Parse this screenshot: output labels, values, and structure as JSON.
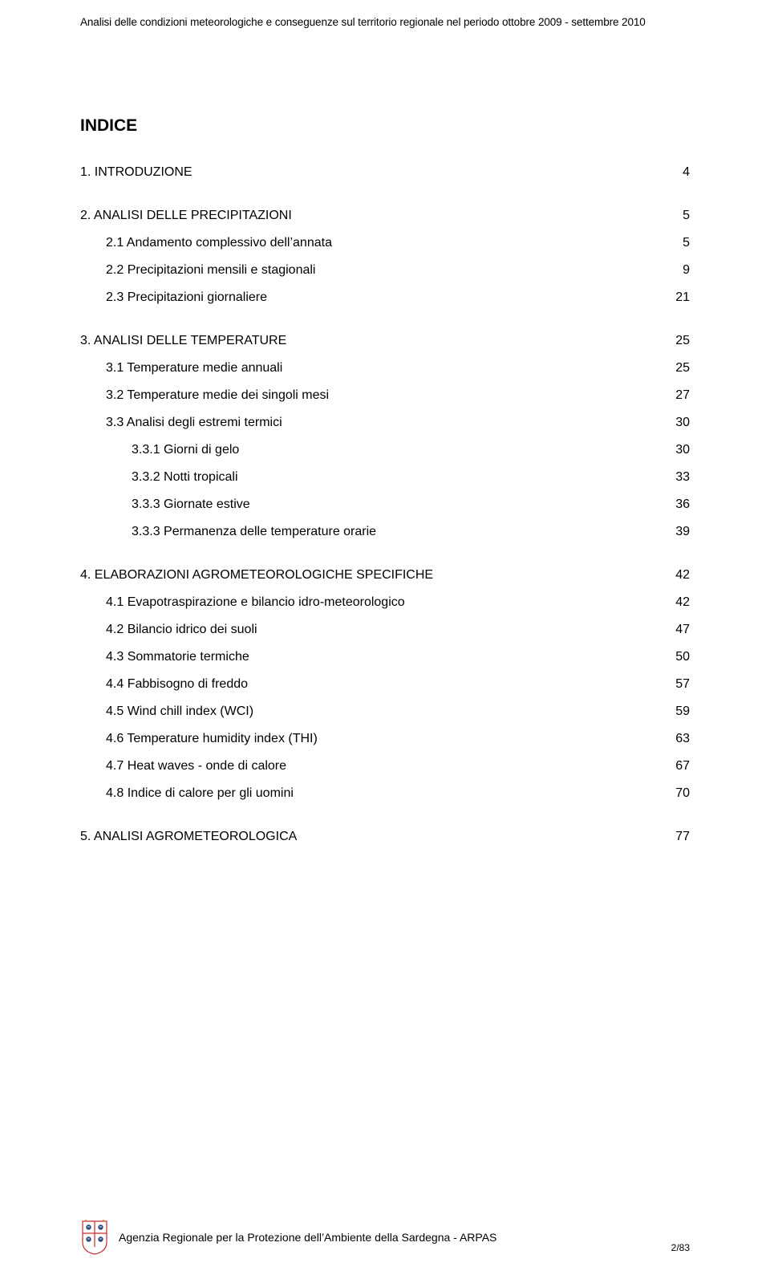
{
  "header": {
    "text": "Analisi delle condizioni meteorologiche e conseguenze sul territorio regionale nel periodo ottobre 2009 - settembre 2010"
  },
  "title": "INDICE",
  "toc": [
    {
      "entries": [
        {
          "label": "1. INTRODUZIONE",
          "page": "4",
          "indent": 0
        }
      ]
    },
    {
      "entries": [
        {
          "label": "2. ANALISI DELLE PRECIPITAZIONI",
          "page": "5",
          "indent": 0
        },
        {
          "label": "2.1 Andamento complessivo dell’annata",
          "page": "5",
          "indent": 1
        },
        {
          "label": "2.2 Precipitazioni mensili e stagionali",
          "page": "9",
          "indent": 1
        },
        {
          "label": "2.3 Precipitazioni giornaliere",
          "page": "21",
          "indent": 1
        }
      ]
    },
    {
      "entries": [
        {
          "label": "3. ANALISI DELLE TEMPERATURE",
          "page": "25",
          "indent": 0
        },
        {
          "label": "3.1 Temperature medie annuali",
          "page": "25",
          "indent": 1
        },
        {
          "label": "3.2 Temperature medie dei singoli mesi",
          "page": "27",
          "indent": 1
        },
        {
          "label": "3.3 Analisi degli estremi termici",
          "page": "30",
          "indent": 1
        },
        {
          "label": "3.3.1 Giorni di gelo",
          "page": "30",
          "indent": 2
        },
        {
          "label": "3.3.2 Notti tropicali",
          "page": "33",
          "indent": 2
        },
        {
          "label": "3.3.3 Giornate estive",
          "page": "36",
          "indent": 2
        },
        {
          "label": "3.3.3 Permanenza delle temperature orarie",
          "page": "39",
          "indent": 2
        }
      ]
    },
    {
      "entries": [
        {
          "label": "4. ELABORAZIONI AGROMETEOROLOGICHE SPECIFICHE",
          "page": "42",
          "indent": 0
        },
        {
          "label": "4.1 Evapotraspirazione e bilancio idro-meteorologico",
          "page": "42",
          "indent": 1
        },
        {
          "label": "4.2 Bilancio idrico dei suoli",
          "page": "47",
          "indent": 1
        },
        {
          "label": "4.3 Sommatorie termiche",
          "page": "50",
          "indent": 1
        },
        {
          "label": "4.4 Fabbisogno di freddo",
          "page": "57",
          "indent": 1
        },
        {
          "label": "4.5 Wind chill index (WCI)",
          "page": "59",
          "indent": 1
        },
        {
          "label": "4.6 Temperature humidity index (THI)",
          "page": "63",
          "indent": 1
        },
        {
          "label": "4.7 Heat waves - onde di calore",
          "page": "67",
          "indent": 1
        },
        {
          "label": "4.8 Indice di calore per gli uomini",
          "page": "70",
          "indent": 1
        }
      ]
    },
    {
      "entries": [
        {
          "label": "5. ANALISI AGROMETEOROLOGICA",
          "page": "77",
          "indent": 0
        }
      ]
    }
  ],
  "footer": {
    "org": "Agenzia Regionale per la Protezione dell’Ambiente della Sardegna - ARPAS",
    "page": "2/83"
  },
  "logo": {
    "colors": {
      "red": "#c62d2d",
      "gold": "#d4a22a",
      "blue": "#2c4d7c",
      "white": "#ffffff"
    }
  }
}
